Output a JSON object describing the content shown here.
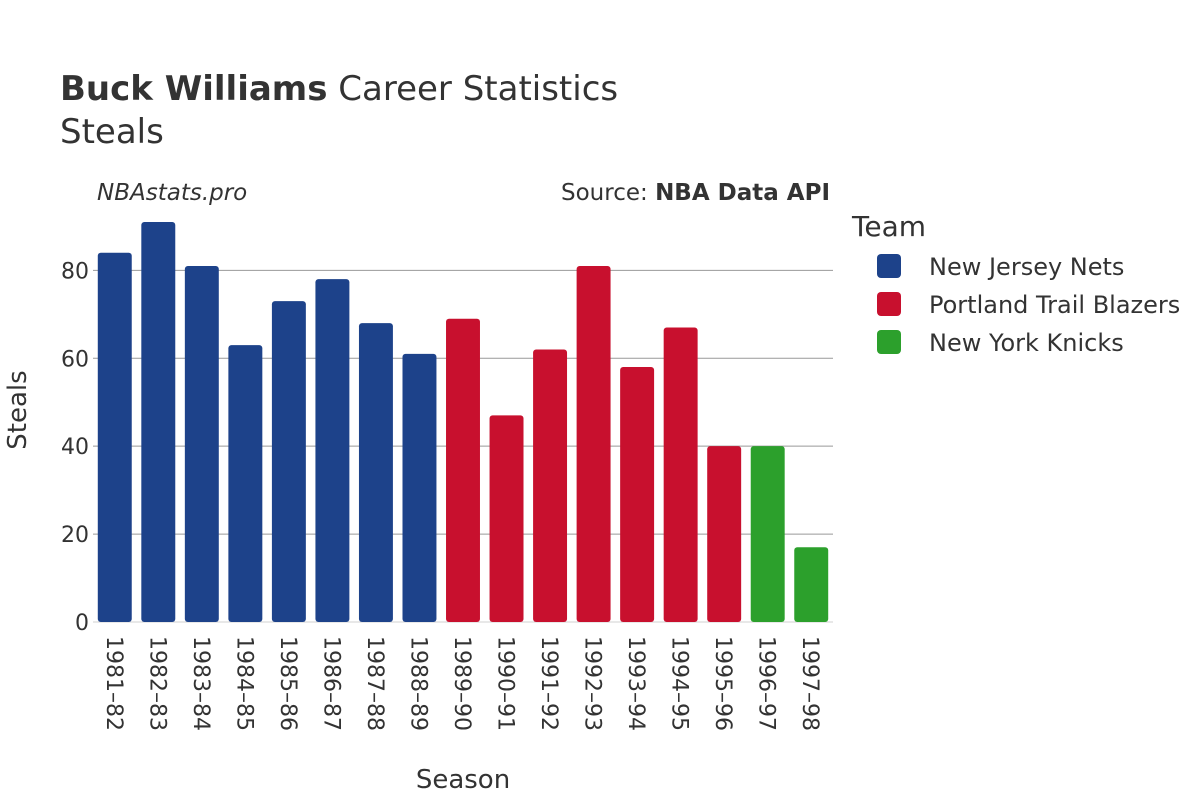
{
  "chart_data": {
    "type": "bar",
    "title_bold": "Buck Williams",
    "title_rest": " Career Statistics",
    "subtitle": "Steals",
    "site": "NBAstats.pro",
    "source_prefix": "Source: ",
    "source_name": "NBA Data API",
    "xlabel": "Season",
    "ylabel": "Steals",
    "ylim": [
      0,
      91
    ],
    "yticks": [
      0,
      20,
      40,
      60,
      80
    ],
    "grid": true,
    "legend_title": "Team",
    "legend_position": "right",
    "teams": [
      {
        "name": "New Jersey Nets",
        "color": "#1d428a"
      },
      {
        "name": "Portland Trail Blazers",
        "color": "#c8102e"
      },
      {
        "name": "New York Knicks",
        "color": "#2ca02c"
      }
    ],
    "categories": [
      "1981–82",
      "1982–83",
      "1983–84",
      "1984–85",
      "1985–86",
      "1986–87",
      "1987–88",
      "1988–89",
      "1989–90",
      "1990–91",
      "1991–92",
      "1992–93",
      "1993–94",
      "1994–95",
      "1995–96",
      "1996–97",
      "1997–98"
    ],
    "values": [
      84,
      91,
      81,
      63,
      73,
      78,
      68,
      61,
      69,
      47,
      62,
      81,
      58,
      67,
      40,
      40,
      17
    ],
    "team_index": [
      0,
      0,
      0,
      0,
      0,
      0,
      0,
      0,
      1,
      1,
      1,
      1,
      1,
      1,
      1,
      2,
      2
    ]
  }
}
